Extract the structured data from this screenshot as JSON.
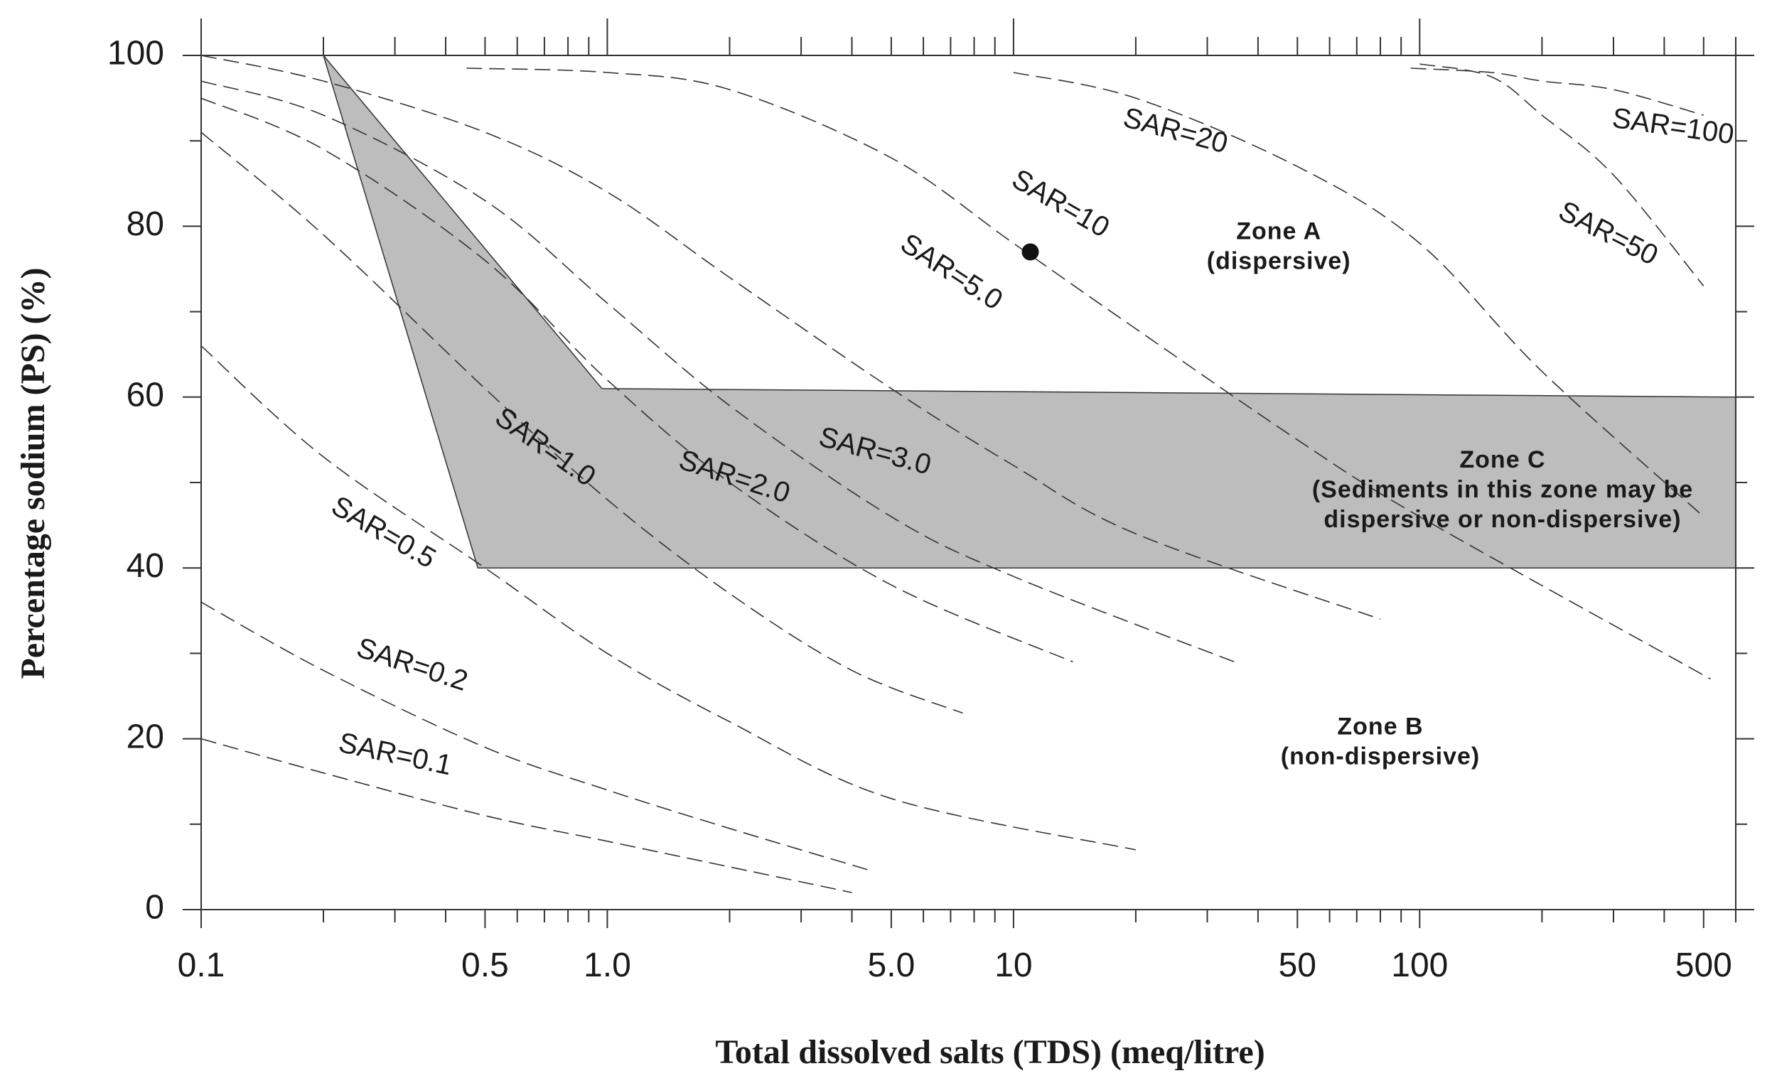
{
  "chart_data": {
    "type": "scatter",
    "title": "",
    "xlabel": "Total dissolved salts (TDS) (meq/litre)",
    "ylabel": "Percentage sodium (PS) (%)",
    "xscale": "log",
    "xlim": [
      0.1,
      600
    ],
    "ylim": [
      0,
      100
    ],
    "x_tick_labels": [
      {
        "value": 0.1,
        "label": "0.1"
      },
      {
        "value": 0.5,
        "label": "0.5"
      },
      {
        "value": 1.0,
        "label": "1.0"
      },
      {
        "value": 5.0,
        "label": "5.0"
      },
      {
        "value": 10,
        "label": "10"
      },
      {
        "value": 50,
        "label": "50"
      },
      {
        "value": 100,
        "label": "100"
      },
      {
        "value": 500,
        "label": "500"
      }
    ],
    "y_tick_labels": [
      {
        "value": 0,
        "label": "0"
      },
      {
        "value": 20,
        "label": "20"
      },
      {
        "value": 40,
        "label": "40"
      },
      {
        "value": 60,
        "label": "60"
      },
      {
        "value": 80,
        "label": "80"
      },
      {
        "value": 100,
        "label": "100"
      }
    ],
    "zone_c_polygon": [
      [
        0.2,
        100
      ],
      [
        0.97,
        61
      ],
      [
        600,
        60
      ],
      [
        600,
        40
      ],
      [
        0.48,
        40
      ]
    ],
    "zones": [
      {
        "name": "zone-a",
        "lines": [
          "Zone A",
          "(dispersive)"
        ],
        "x": 45,
        "y": 77.5
      },
      {
        "name": "zone-c",
        "lines": [
          "Zone C",
          "(Sediments in this zone may be",
          "dispersive or non-dispersive)"
        ],
        "x": 160,
        "y": 49
      },
      {
        "name": "zone-b",
        "lines": [
          "Zone B",
          "(non-dispersive)"
        ],
        "x": 80,
        "y": 19.5
      }
    ],
    "sar_lines": [
      {
        "label": "SAR=0.1",
        "label_x": 0.3,
        "label_y": 18,
        "label_angle": 12,
        "x": [
          0.1,
          0.2,
          0.5,
          1,
          2,
          4
        ],
        "y": [
          20,
          16,
          11,
          8,
          5,
          2
        ]
      },
      {
        "label": "SAR=0.2",
        "label_x": 0.33,
        "label_y": 28.5,
        "label_angle": 18,
        "x": [
          0.1,
          0.2,
          0.5,
          1,
          2,
          4.5
        ],
        "y": [
          36,
          28,
          19,
          14,
          9.5,
          4.5
        ]
      },
      {
        "label": "SAR=0.5",
        "label_x": 0.28,
        "label_y": 44,
        "label_angle": 30,
        "x": [
          0.1,
          0.2,
          0.5,
          1,
          2,
          5,
          20
        ],
        "y": [
          66,
          53,
          40,
          30,
          22,
          13,
          7
        ]
      },
      {
        "label": "SAR=1.0",
        "label_x": 0.7,
        "label_y": 54,
        "label_angle": 35,
        "x": [
          0.1,
          0.2,
          0.5,
          1,
          2,
          4,
          7.5
        ],
        "y": [
          91,
          79,
          61,
          48,
          37,
          28,
          23
        ]
      },
      {
        "label": "SAR=2.0",
        "label_x": 2.05,
        "label_y": 50.5,
        "label_angle": 18,
        "x": [
          0.1,
          0.2,
          0.5,
          1,
          2,
          5,
          14
        ],
        "y": [
          95,
          89,
          76,
          62,
          50,
          38,
          29
        ]
      },
      {
        "label": "SAR=3.0",
        "label_x": 4.55,
        "label_y": 53.5,
        "label_angle": 15,
        "x": [
          0.1,
          0.2,
          0.5,
          1,
          2,
          5,
          10,
          35
        ],
        "y": [
          97,
          93,
          83,
          71,
          59,
          46,
          39,
          29
        ]
      },
      {
        "label": "SAR=5.0",
        "label_x": 7.0,
        "label_y": 74.5,
        "label_angle": 33,
        "x": [
          0.1,
          0.2,
          0.5,
          1,
          2,
          5,
          10,
          20,
          80
        ],
        "y": [
          100,
          97,
          91,
          84,
          74,
          61,
          52,
          44,
          34
        ]
      },
      {
        "label": "SAR=10",
        "label_x": 13.0,
        "label_y": 82.5,
        "label_angle": 30,
        "x": [
          0.45,
          1,
          2,
          5,
          10,
          20,
          50,
          100,
          520
        ],
        "y": [
          98.5,
          98,
          96,
          88,
          78,
          68,
          55,
          46,
          27
        ]
      },
      {
        "label": "SAR=20",
        "label_x": 25.0,
        "label_y": 91,
        "label_angle": 15,
        "x": [
          10,
          20,
          50,
          100,
          200,
          500
        ],
        "y": [
          98,
          95,
          87,
          78,
          63,
          46
        ]
      },
      {
        "label": "SAR=50",
        "label_x": 290,
        "label_y": 79,
        "label_angle": 27,
        "x": [
          100,
          150,
          200,
          300,
          500
        ],
        "y": [
          99,
          97.5,
          93,
          86,
          73
        ]
      },
      {
        "label": "SAR=100",
        "label_x": 420,
        "label_y": 91.5,
        "label_angle": 8,
        "x": [
          95,
          150,
          200,
          300,
          500
        ],
        "y": [
          98.5,
          98,
          97,
          96,
          93
        ]
      }
    ],
    "points": [
      {
        "x": 11,
        "y": 77
      }
    ]
  }
}
